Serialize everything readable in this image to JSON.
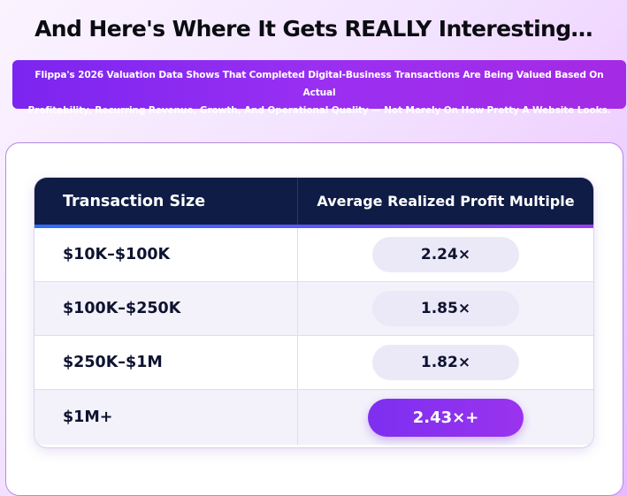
{
  "headline": "And Here's Where It Gets REALLY Interesting…",
  "banner": {
    "line1": "Flippa's 2026 Valuation Data Shows That Completed Digital-Business Transactions Are Being Valued Based On Actual",
    "line2": "Profitability, Recurring Revenue, Growth, And Operational Quality — Not Merely On How Pretty A Website Looks."
  },
  "table": {
    "columns": [
      "Transaction Size",
      "Average Realized Profit Multiple"
    ],
    "rows": [
      {
        "size": "$10K–$100K",
        "multiple": "2.24×"
      },
      {
        "size": "$100K–$250K",
        "multiple": "1.85×"
      },
      {
        "size": "$250K–$1M",
        "multiple": "1.82×"
      },
      {
        "size": "$1M+",
        "multiple": "2.43×+",
        "highlight": true
      }
    ]
  },
  "colors": {
    "header_bg": "#0f1c45",
    "accent_purple": "#8b2ff0",
    "pill_bg": "#ebe8f8"
  }
}
